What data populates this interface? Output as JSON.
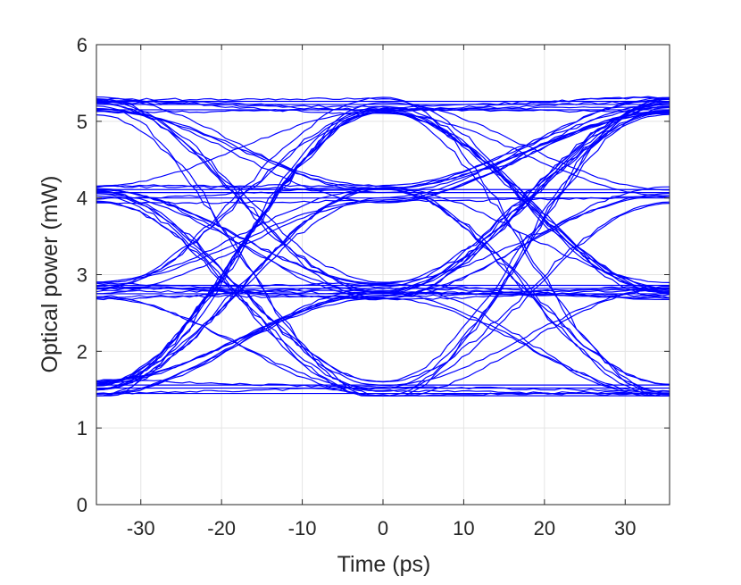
{
  "chart_data": {
    "type": "line",
    "title": "",
    "xlabel": "Time (ps)",
    "ylabel": "Optical power (mW)",
    "xlim": [
      -35.5,
      35.5
    ],
    "ylim": [
      0,
      6
    ],
    "xticks": [
      -30,
      -20,
      -10,
      0,
      10,
      20,
      30
    ],
    "yticks": [
      0,
      1,
      2,
      3,
      4,
      5,
      6
    ],
    "grid": true,
    "legend": "none",
    "line_color": "#0000ff",
    "eye_diagram": {
      "symbol_period_ps": 35.5,
      "eye_center_times_ps": [
        -35.5,
        0,
        35.5
      ],
      "crossing_times_ps": [
        -17.75,
        17.75
      ],
      "levels_mW": [
        1.5,
        2.8,
        4.05,
        5.2
      ],
      "level_spread_mW": 0.12,
      "min_power_mW": 1.42,
      "max_power_mW": 5.5
    }
  }
}
